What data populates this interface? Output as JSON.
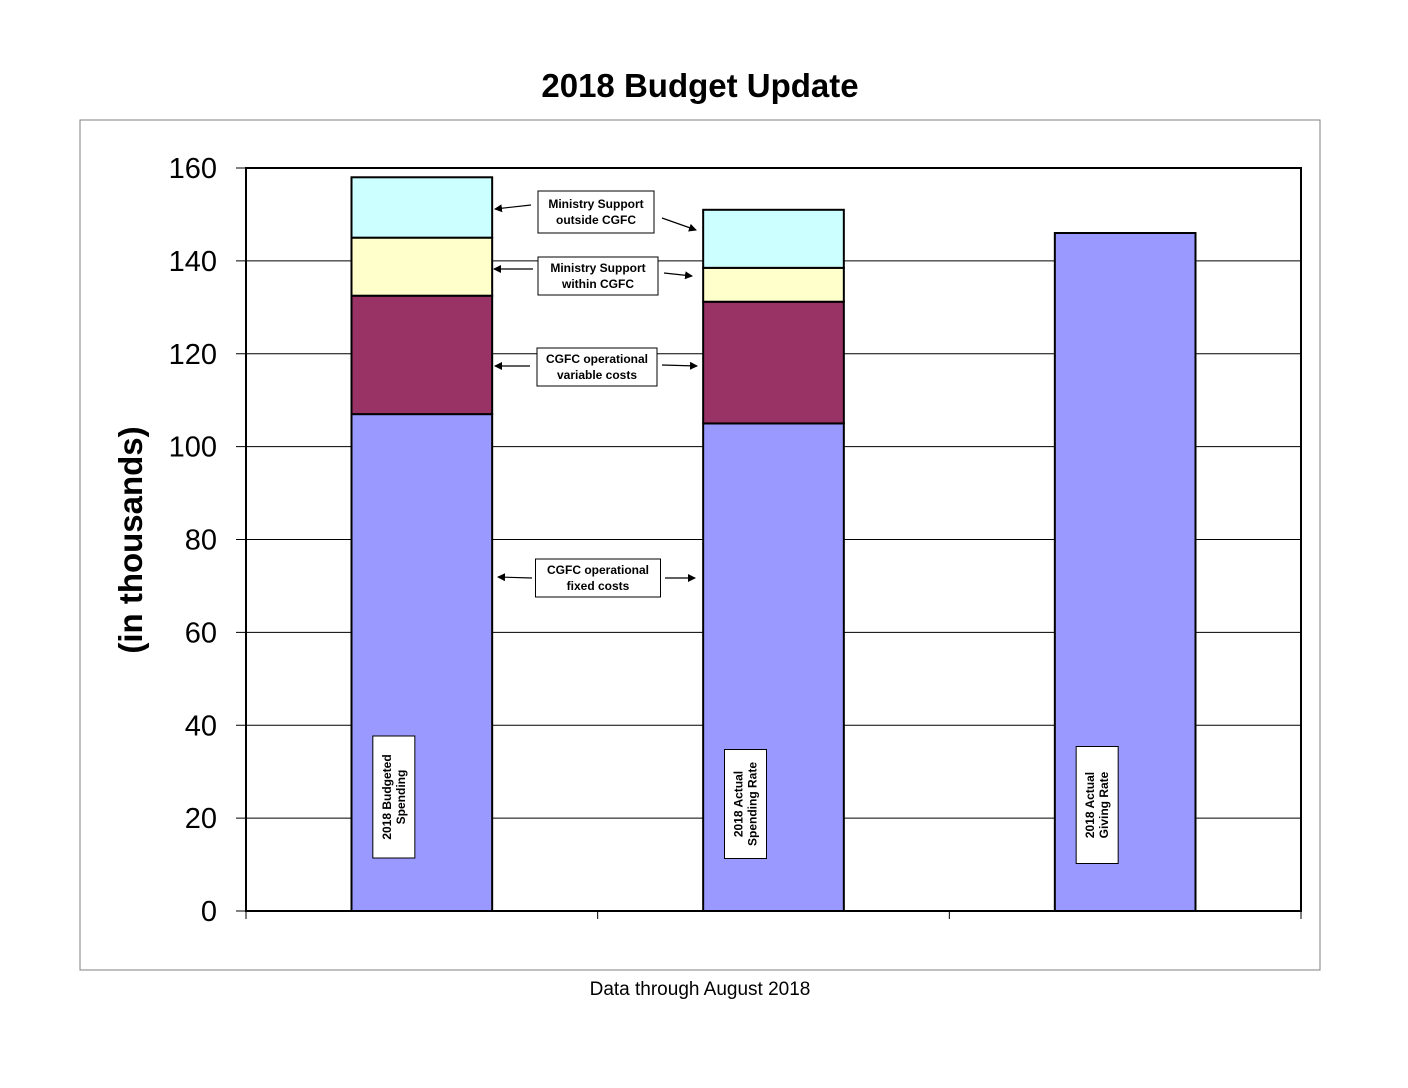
{
  "chart_data": {
    "type": "bar",
    "stacked": true,
    "title": "2018 Budget Update",
    "ylabel": "(in thousands)",
    "footer": "Data through August 2018",
    "ylim": [
      0,
      160
    ],
    "yticks": [
      0,
      20,
      40,
      60,
      80,
      100,
      120,
      140,
      160
    ],
    "grid": true,
    "categories": [
      "2018  Budgeted Spending",
      "2018 Actual Spending Rate",
      "2018 Actual Giving Rate"
    ],
    "bar_labels": [
      [
        "2018  Budgeted",
        "Spending"
      ],
      [
        "2018 Actual",
        "Spending Rate"
      ],
      [
        "2018 Actual",
        "Giving Rate"
      ]
    ],
    "series": [
      {
        "name": "CGFC operational fixed costs",
        "label_lines": [
          "CGFC operational",
          "fixed costs"
        ],
        "color": "#9999ff",
        "values": [
          107,
          105,
          146
        ]
      },
      {
        "name": "CGFC operational variable costs",
        "label_lines": [
          "CGFC operational",
          "variable costs"
        ],
        "color": "#993366",
        "values": [
          25.5,
          26.2,
          0
        ]
      },
      {
        "name": "Ministry Support within CGFC",
        "label_lines": [
          "Ministry Support",
          "within  CGFC"
        ],
        "color": "#ffffcc",
        "values": [
          12.5,
          7.3,
          0
        ]
      },
      {
        "name": "Ministry Support outside CGFC",
        "label_lines": [
          "Ministry Support",
          "outside CGFC"
        ],
        "color": "#ccffff",
        "values": [
          13,
          12.5,
          0
        ]
      }
    ]
  }
}
